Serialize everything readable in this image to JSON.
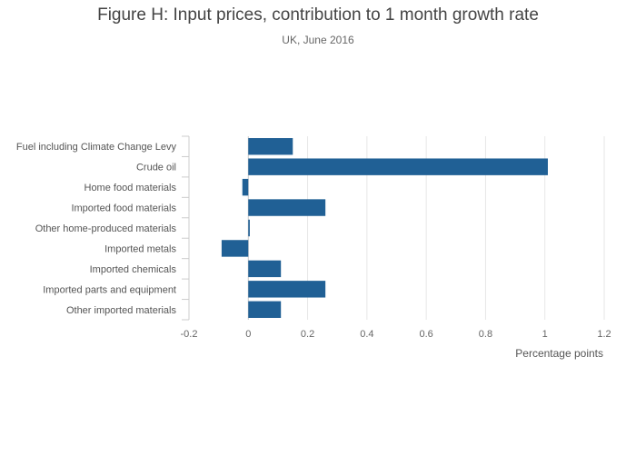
{
  "chart_data": {
    "type": "bar",
    "orientation": "horizontal",
    "title": "Figure H: Input prices, contribution to 1 month growth rate",
    "subtitle": "UK, June 2016",
    "xlabel": "Percentage points",
    "ylabel": "",
    "xlim": [
      -0.2,
      1.2
    ],
    "xticks": [
      -0.2,
      0,
      0.2,
      0.4,
      0.6,
      0.8,
      1,
      1.2
    ],
    "xtick_labels": [
      "-0.2",
      "0",
      "0.2",
      "0.4",
      "0.6",
      "0.8",
      "1",
      "1.2"
    ],
    "grid": true,
    "legend": "none",
    "bar_color": "#206095",
    "categories": [
      "Fuel including Climate Change Levy",
      "Crude oil",
      "Home food materials",
      "Imported food materials",
      "Other home-produced materials",
      "Imported metals",
      "Imported chemicals",
      "Imported parts and equipment",
      "Other imported materials"
    ],
    "values": [
      0.15,
      1.01,
      -0.02,
      0.26,
      0.005,
      -0.09,
      0.11,
      0.26,
      0.11
    ]
  }
}
